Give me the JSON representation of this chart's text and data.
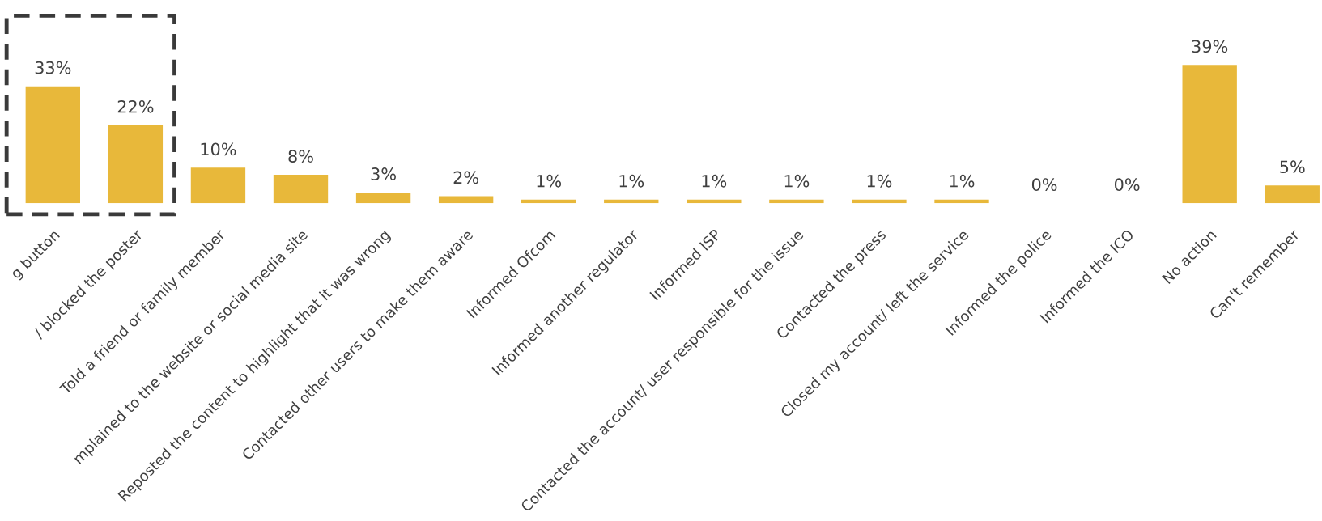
{
  "chart_data": {
    "type": "bar",
    "categories": [
      "g button",
      "/ blocked the poster",
      "Told a friend or family member",
      "mplained to the website or social media site",
      "Reposted the content to highlight that it was wrong",
      "Contacted other users to make them aware",
      "Informed Ofcom",
      "Informed another regulator",
      "Informed ISP",
      "Contacted the account/ user responsible for the issue",
      "Contacted the press",
      "Closed my account/ left the service",
      "Informed the police",
      "Informed the ICO",
      "No action",
      "Can't remember"
    ],
    "values": [
      33,
      22,
      10,
      8,
      3,
      2,
      1,
      1,
      1,
      1,
      1,
      1,
      0,
      0,
      39,
      5
    ],
    "value_labels": [
      "33%",
      "22%",
      "10%",
      "8%",
      "3%",
      "2%",
      "1%",
      "1%",
      "1%",
      "1%",
      "1%",
      "1%",
      "0%",
      "0%",
      "39%",
      "5%"
    ],
    "color": "#e8b83a",
    "grid": false,
    "legend": false
  }
}
